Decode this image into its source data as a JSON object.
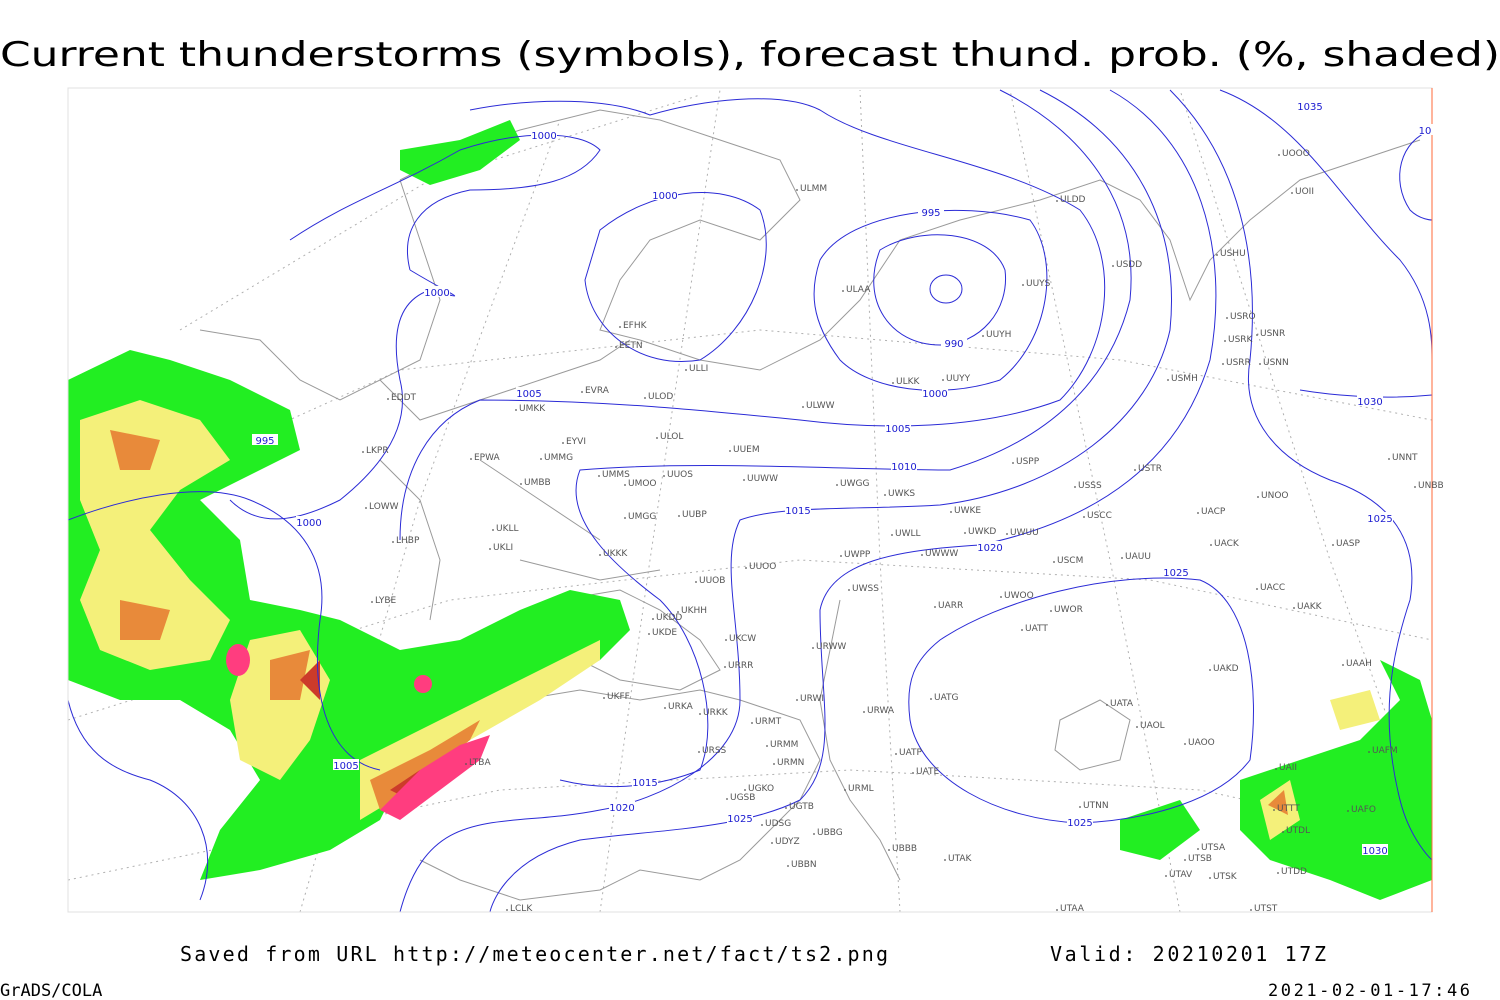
{
  "title": "Current thunderstorms (symbols), forecast thund. prob. (%, shaded)",
  "footer": {
    "saved": "Saved from URL http://meteocenter.net/fact/ts2.png",
    "valid": "Valid: 20210201 17Z",
    "software": "GrADS/COLA",
    "timestamp": "2021-02-01-17:46"
  },
  "isobar_labels": [
    1000,
    1000,
    1000,
    1000,
    1000,
    995,
    990,
    995,
    1005,
    1005,
    1005,
    1010,
    1015,
    1015,
    1020,
    1020,
    1025,
    1025,
    1025,
    1025,
    1030,
    1030,
    1035,
    10
  ],
  "stations": [
    "ULMM",
    "ULDD",
    "USDD",
    "USHU",
    "UUYS",
    "ULAA",
    "UUYH",
    "USRO",
    "USRK",
    "USNR",
    "USRR",
    "USNN",
    "EFHK",
    "EETN",
    "ULLI",
    "ULKK",
    "UUYY",
    "USMH",
    "EVRA",
    "ULOD",
    "UMKK",
    "ULWW",
    "EYVI",
    "ULOL",
    "UUEM",
    "EPWA",
    "UMMG",
    "UNNT",
    "USPP",
    "USTR",
    "UMMS",
    "UUOS",
    "UUWW",
    "UWGG",
    "UWKS",
    "USSS",
    "UNOO",
    "UNBB",
    "UMBB",
    "UMOO",
    "LOWW",
    "UWKE",
    "UACP",
    "USCC",
    "UMGG",
    "UUBP",
    "UKLL",
    "UWKD",
    "UWUU",
    "UWLL",
    "LHBP",
    "UKLI",
    "UACK",
    "UASP",
    "UWWW",
    "USCM",
    "UAUU",
    "UWPP",
    "UKKK",
    "UUOO",
    "LYBE",
    "UUOB",
    "UWSS",
    "UACC",
    "UAKK",
    "UARR",
    "UWOO",
    "UWOR",
    "UKDD",
    "UKDE",
    "UATT",
    "UKCW",
    "URWW",
    "UKHH",
    "URRR",
    "UAKD",
    "UAAH",
    "UKFF",
    "UATG",
    "URKA",
    "URKK",
    "URWI",
    "URWA",
    "UATA",
    "URMT",
    "UAOL",
    "UAFM",
    "UAOO",
    "URSS",
    "URMM",
    "UATP",
    "URMN",
    "UATE",
    "UGKO",
    "URML",
    "UGSB",
    "UGTB",
    "UTNN",
    "UTDL",
    "UDSG",
    "UBBG",
    "UDYZ",
    "UBBB",
    "UTAK",
    "UTSA",
    "UTSB",
    "UBBN",
    "UTAV",
    "UTSK",
    "UTDD",
    "UTST",
    "UTAA",
    "LCLK",
    "UAFO",
    "UTTT",
    "LKPR",
    "EDDT",
    "LTBA",
    "UOOO",
    "UOII",
    "UAII"
  ]
}
